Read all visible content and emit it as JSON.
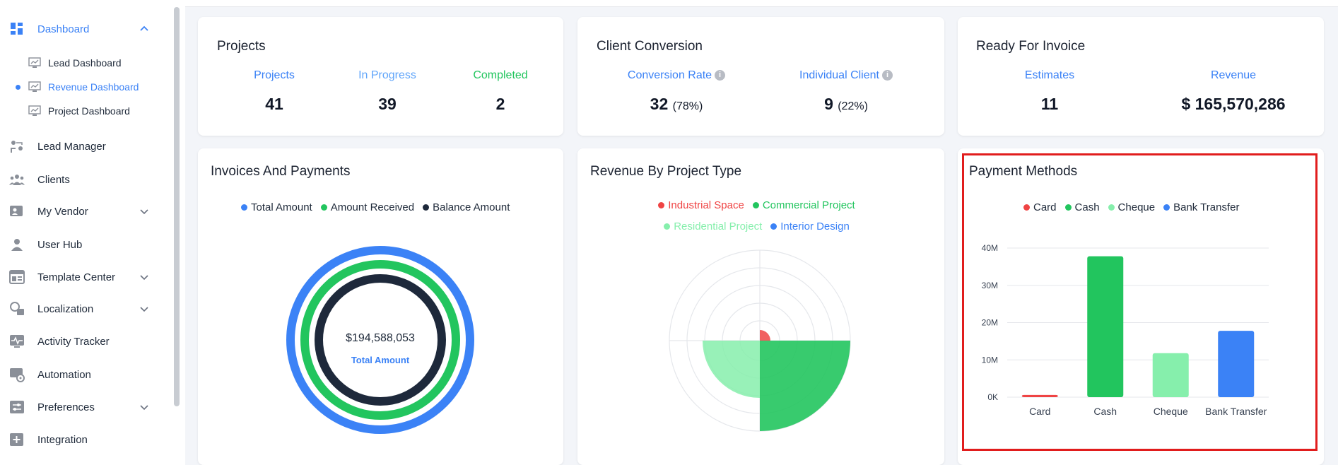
{
  "sidebar": {
    "dashboard": "Dashboard",
    "sub": [
      "Lead Dashboard",
      "Revenue Dashboard",
      "Project Dashboard"
    ],
    "items": [
      "Lead Manager",
      "Clients",
      "My Vendor",
      "User Hub",
      "Template Center",
      "Localization",
      "Activity Tracker",
      "Automation",
      "Preferences",
      "Integration"
    ]
  },
  "projects": {
    "title": "Projects",
    "labels": [
      "Projects",
      "In Progress",
      "Completed"
    ],
    "values": [
      "41",
      "39",
      "2"
    ]
  },
  "conversion": {
    "title": "Client Conversion",
    "rate_label": "Conversion Rate",
    "rate_value": "32",
    "rate_pct": "(78%)",
    "individual_label": "Individual Client",
    "individual_value": "9",
    "individual_pct": "(22%)",
    "info": "i"
  },
  "invoice": {
    "title": "Ready For Invoice",
    "estimates_label": "Estimates",
    "estimates_value": "11",
    "revenue_label": "Revenue",
    "revenue_value": "$ 165,570,286"
  },
  "invoices_payments": {
    "title": "Invoices And Payments",
    "legend": [
      "Total Amount",
      "Amount Received",
      "Balance Amount"
    ],
    "center_value": "$194,588,053",
    "center_label": "Total Amount"
  },
  "revenue_type": {
    "title": "Revenue By Project Type",
    "legend": [
      "Industrial Space",
      "Commercial Project",
      "Residential Project",
      "Interior Design"
    ]
  },
  "payment_methods": {
    "title": "Payment Methods"
  },
  "colors": {
    "blue": "#3b82f6",
    "green": "#22c55e",
    "light_green": "#86efac",
    "red": "#ef4444",
    "navy": "#1e293b"
  },
  "chart_data": [
    {
      "type": "bar",
      "categories": [
        "Card",
        "Cash",
        "Cheque",
        "Bank Transfer"
      ],
      "values": [
        0.6,
        37.8,
        11.8,
        17.8
      ],
      "unit": "M",
      "yticks": [
        "0K",
        "10M",
        "20M",
        "30M",
        "40M"
      ],
      "ylim": [
        0,
        40
      ],
      "legend": [
        "Card",
        "Cash",
        "Cheque",
        "Bank Transfer"
      ],
      "legend_position": "top",
      "colors": [
        "#ef4444",
        "#22c55e",
        "#86efac",
        "#3b82f6"
      ],
      "grid": true
    }
  ]
}
